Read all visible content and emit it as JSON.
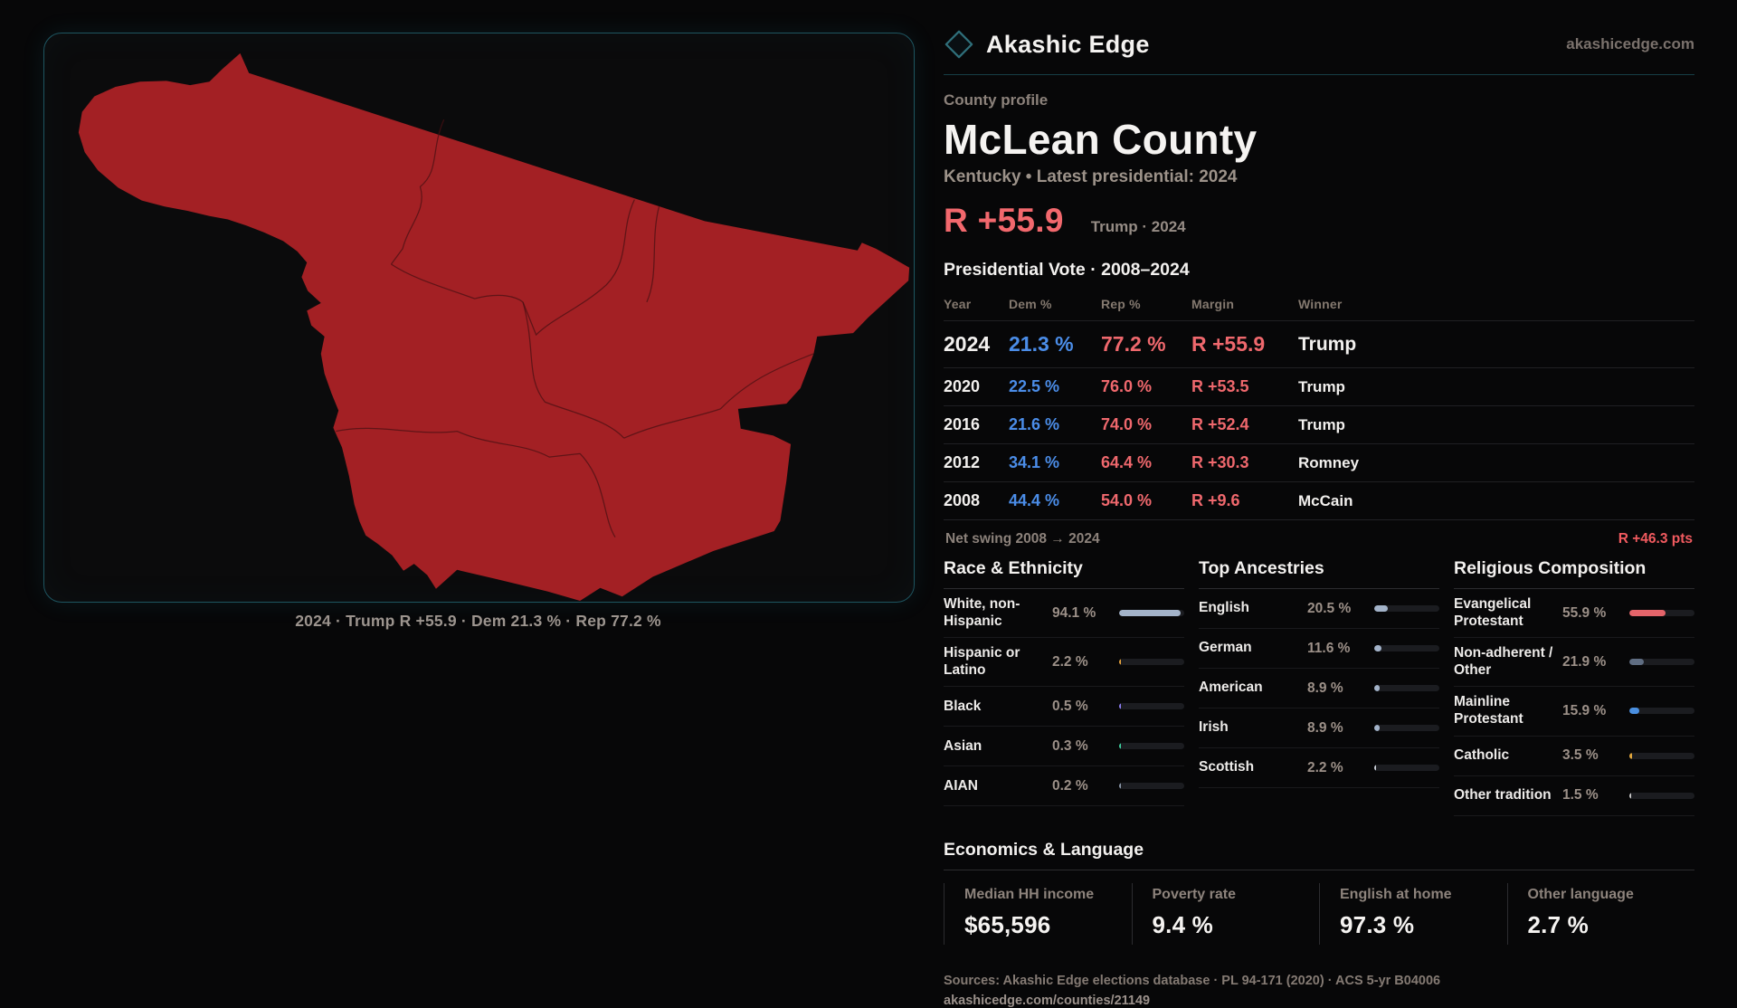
{
  "brand": {
    "name": "Akashic Edge",
    "domain": "akashicedge.com"
  },
  "map": {
    "caption": "2024 · Trump R +55.9 · Dem 21.3 % · Rep 77.2 %",
    "fill_color": "#a32024",
    "border_color": "#1e5560"
  },
  "profile": {
    "eyebrow": "County profile",
    "title": "McLean County",
    "subtitle": "Kentucky • Latest presidential: 2024",
    "margin_value": "R +55.9",
    "margin_context": "Trump · 2024"
  },
  "vote_table": {
    "title": "Presidential Vote · 2008–2024",
    "columns": [
      "Year",
      "Dem %",
      "Rep %",
      "Margin",
      "Winner"
    ],
    "rows": [
      {
        "year": "2024",
        "dem": "21.3 %",
        "rep": "77.2 %",
        "margin": "R +55.9",
        "winner": "Trump",
        "emphasis": true
      },
      {
        "year": "2020",
        "dem": "22.5 %",
        "rep": "76.0 %",
        "margin": "R +53.5",
        "winner": "Trump",
        "emphasis": false
      },
      {
        "year": "2016",
        "dem": "21.6 %",
        "rep": "74.0 %",
        "margin": "R +52.4",
        "winner": "Trump",
        "emphasis": false
      },
      {
        "year": "2012",
        "dem": "34.1 %",
        "rep": "64.4 %",
        "margin": "R +30.3",
        "winner": "Romney",
        "emphasis": false
      },
      {
        "year": "2008",
        "dem": "44.4 %",
        "rep": "54.0 %",
        "margin": "R +9.6",
        "winner": "McCain",
        "emphasis": false
      }
    ]
  },
  "net_swing": {
    "label": "Net swing 2008 → 2024",
    "value": "R +46.3 pts"
  },
  "demographics": {
    "race": {
      "title": "Race & Ethnicity",
      "rows": [
        {
          "label": "White, non-Hispanic",
          "value": "94.1 %",
          "pct": 94.1,
          "color": "#a3b3c9"
        },
        {
          "label": "Hispanic or Latino",
          "value": "2.2 %",
          "pct": 2.2,
          "color": "#e8a43c"
        },
        {
          "label": "Black",
          "value": "0.5 %",
          "pct": 0.5,
          "color": "#8b7cf0"
        },
        {
          "label": "Asian",
          "value": "0.3 %",
          "pct": 0.3,
          "color": "#3ecf9e"
        },
        {
          "label": "AIAN",
          "value": "0.2 %",
          "pct": 0.2,
          "color": "#8a97a8"
        }
      ]
    },
    "ancestries": {
      "title": "Top Ancestries",
      "rows": [
        {
          "label": "English",
          "value": "20.5 %",
          "pct": 20.5,
          "color": "#a3b3c9"
        },
        {
          "label": "German",
          "value": "11.6 %",
          "pct": 11.6,
          "color": "#a3b3c9"
        },
        {
          "label": "American",
          "value": "8.9 %",
          "pct": 8.9,
          "color": "#a3b3c9"
        },
        {
          "label": "Irish",
          "value": "8.9 %",
          "pct": 8.9,
          "color": "#a3b3c9"
        },
        {
          "label": "Scottish",
          "value": "2.2 %",
          "pct": 2.2,
          "color": "#c9ced6"
        }
      ]
    },
    "religion": {
      "title": "Religious Composition",
      "rows": [
        {
          "label": "Evangelical Protestant",
          "value": "55.9 %",
          "pct": 55.9,
          "color": "#e4646a"
        },
        {
          "label": "Non-adherent / Other",
          "value": "21.9 %",
          "pct": 21.9,
          "color": "#5f6d82"
        },
        {
          "label": "Mainline Protestant",
          "value": "15.9 %",
          "pct": 15.9,
          "color": "#4a8fe0"
        },
        {
          "label": "Catholic",
          "value": "3.5 %",
          "pct": 3.5,
          "color": "#e0a63d"
        },
        {
          "label": "Other tradition",
          "value": "1.5 %",
          "pct": 1.5,
          "color": "#c8c8c8"
        }
      ]
    }
  },
  "economics": {
    "title": "Economics & Language",
    "stats": [
      {
        "label": "Median HH income",
        "value": "$65,596"
      },
      {
        "label": "Poverty rate",
        "value": "9.4 %"
      },
      {
        "label": "English at home",
        "value": "97.3 %"
      },
      {
        "label": "Other language",
        "value": "2.7 %"
      }
    ]
  },
  "footer": {
    "sources": "Sources: Akashic Edge elections database · PL 94-171 (2020) · ACS 5-yr B04006",
    "permalink": "akashicedge.com/counties/21149"
  },
  "colors": {
    "dem_blue": "#4b8de8",
    "rep_red": "#ef686d",
    "accent_red": "#f2686d",
    "teal": "#1e5560"
  }
}
